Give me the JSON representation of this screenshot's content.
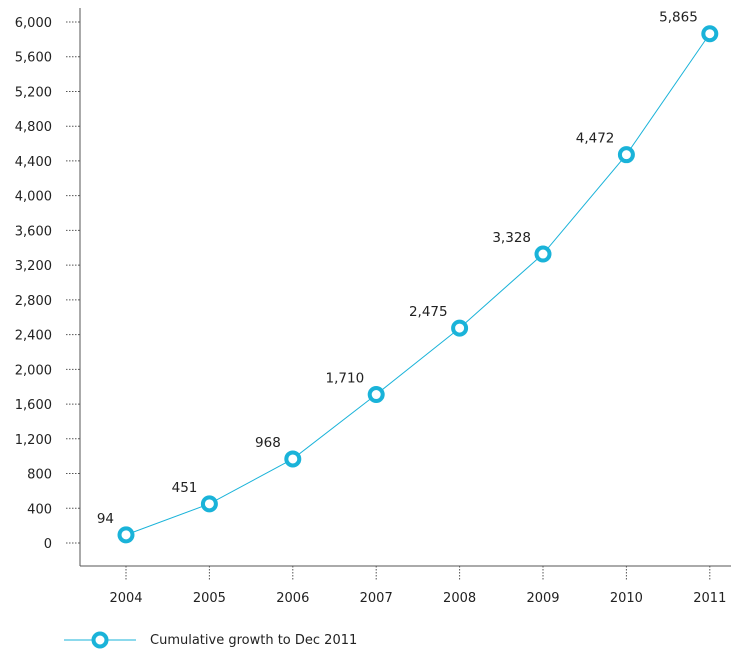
{
  "chart_data": {
    "type": "line",
    "title": "",
    "xlabel": "",
    "ylabel": "",
    "x": [
      "2004",
      "2005",
      "2006",
      "2007",
      "2008",
      "2009",
      "2010",
      "2011"
    ],
    "ylim": [
      0,
      6000
    ],
    "yticks": [
      "0",
      "400",
      "800",
      "1,200",
      "1,600",
      "2,000",
      "2,400",
      "2,800",
      "3,200",
      "3,600",
      "4,000",
      "4,400",
      "4,800",
      "5,200",
      "5,600",
      "6,000"
    ],
    "series": [
      {
        "name": "Cumulative growth to Dec 2011",
        "values": [
          94,
          451,
          968,
          1710,
          2475,
          3328,
          4472,
          5865
        ],
        "labels": [
          "94",
          "451",
          "968",
          "1,710",
          "2,475",
          "3,328",
          "4,472",
          "5,865"
        ],
        "color": "#1ab3d9"
      }
    ],
    "grid": false,
    "legend_position": "bottom-left"
  }
}
